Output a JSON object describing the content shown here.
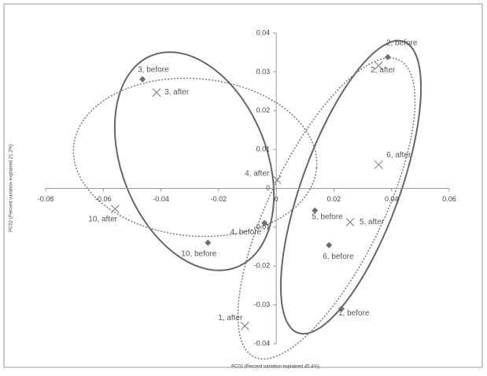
{
  "chart_data": {
    "type": "scatter",
    "x_label": "PC01 (Percent variation explained 45.4%)",
    "y_label": "PC02 (Percent variation explained 21.2%)",
    "xlim": [
      -0.08,
      0.06
    ],
    "xticks": [
      -0.08,
      -0.06,
      -0.04,
      -0.02,
      0,
      0.02,
      0.04,
      0.06
    ],
    "ylim": [
      -0.04,
      0.04
    ],
    "yticks": [
      -0.04,
      -0.03,
      -0.02,
      -0.01,
      0,
      0.01,
      0.02,
      0.03,
      0.04
    ],
    "series": [
      {
        "marker": "diamond",
        "color": "#6e6e6e",
        "labels": [
          "3, before",
          "2, before",
          "4, before",
          "5, before",
          "6, before",
          "10, before",
          "1, before"
        ],
        "x": [
          -0.0464,
          0.0387,
          -0.0041,
          0.0134,
          0.0183,
          -0.0237,
          0.0226
        ],
        "values": [
          0.0281,
          0.0338,
          -0.0089,
          -0.0057,
          -0.0146,
          -0.014,
          -0.031
        ]
      },
      {
        "marker": "cross",
        "color": "#8a8a8a",
        "labels": [
          "3, after",
          "2, after",
          "6, after",
          "4, after",
          "10, after",
          "5, after",
          "1, after"
        ],
        "x": [
          -0.0415,
          0.0355,
          0.0355,
          0.0003,
          -0.0559,
          0.0256,
          -0.0109
        ],
        "values": [
          0.0247,
          0.0316,
          0.0061,
          0.0022,
          -0.0053,
          -0.0087,
          -0.0354
        ]
      }
    ]
  }
}
